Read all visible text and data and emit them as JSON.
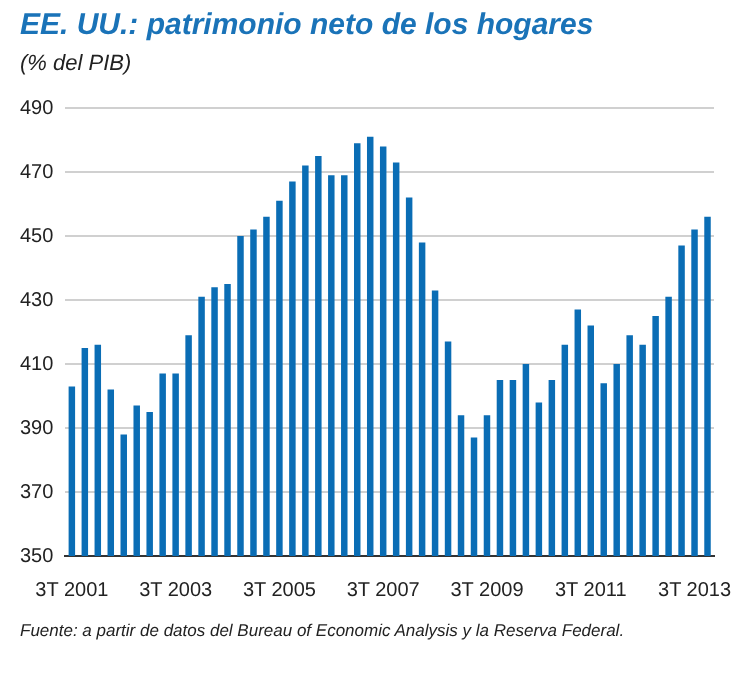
{
  "chart_data": {
    "type": "bar",
    "title": "EE. UU.: patrimonio neto de los hogares",
    "subtitle": "(% del PIB)",
    "categories": [
      "3T 2001",
      null,
      null,
      null,
      null,
      null,
      null,
      null,
      "3T 2003",
      null,
      null,
      null,
      null,
      null,
      null,
      null,
      "3T 2005",
      null,
      null,
      null,
      null,
      null,
      null,
      null,
      "3T 2007",
      null,
      null,
      null,
      null,
      null,
      null,
      null,
      "3T 2009",
      null,
      null,
      null,
      null,
      null,
      null,
      null,
      "3T 2011",
      null,
      null,
      null,
      null,
      null,
      null,
      null,
      "3T 2013",
      null
    ],
    "values": [
      403,
      415,
      416,
      402,
      388,
      397,
      395,
      407,
      407,
      419,
      431,
      434,
      435,
      450,
      452,
      456,
      461,
      467,
      472,
      475,
      469,
      469,
      479,
      481,
      478,
      473,
      462,
      448,
      433,
      417,
      394,
      387,
      394,
      405,
      405,
      410,
      398,
      405,
      416,
      427,
      422,
      404,
      410,
      419,
      416,
      425,
      431,
      447,
      452,
      456
    ],
    "color": "#0a6db5",
    "ylim": [
      350,
      490
    ],
    "yticks": [
      350,
      370,
      390,
      410,
      430,
      450,
      470,
      490
    ],
    "grid": "y",
    "annotations": [
      "Fuente: a partir de datos del Bureau of Economic Analysis y la Reserva Federal."
    ]
  }
}
